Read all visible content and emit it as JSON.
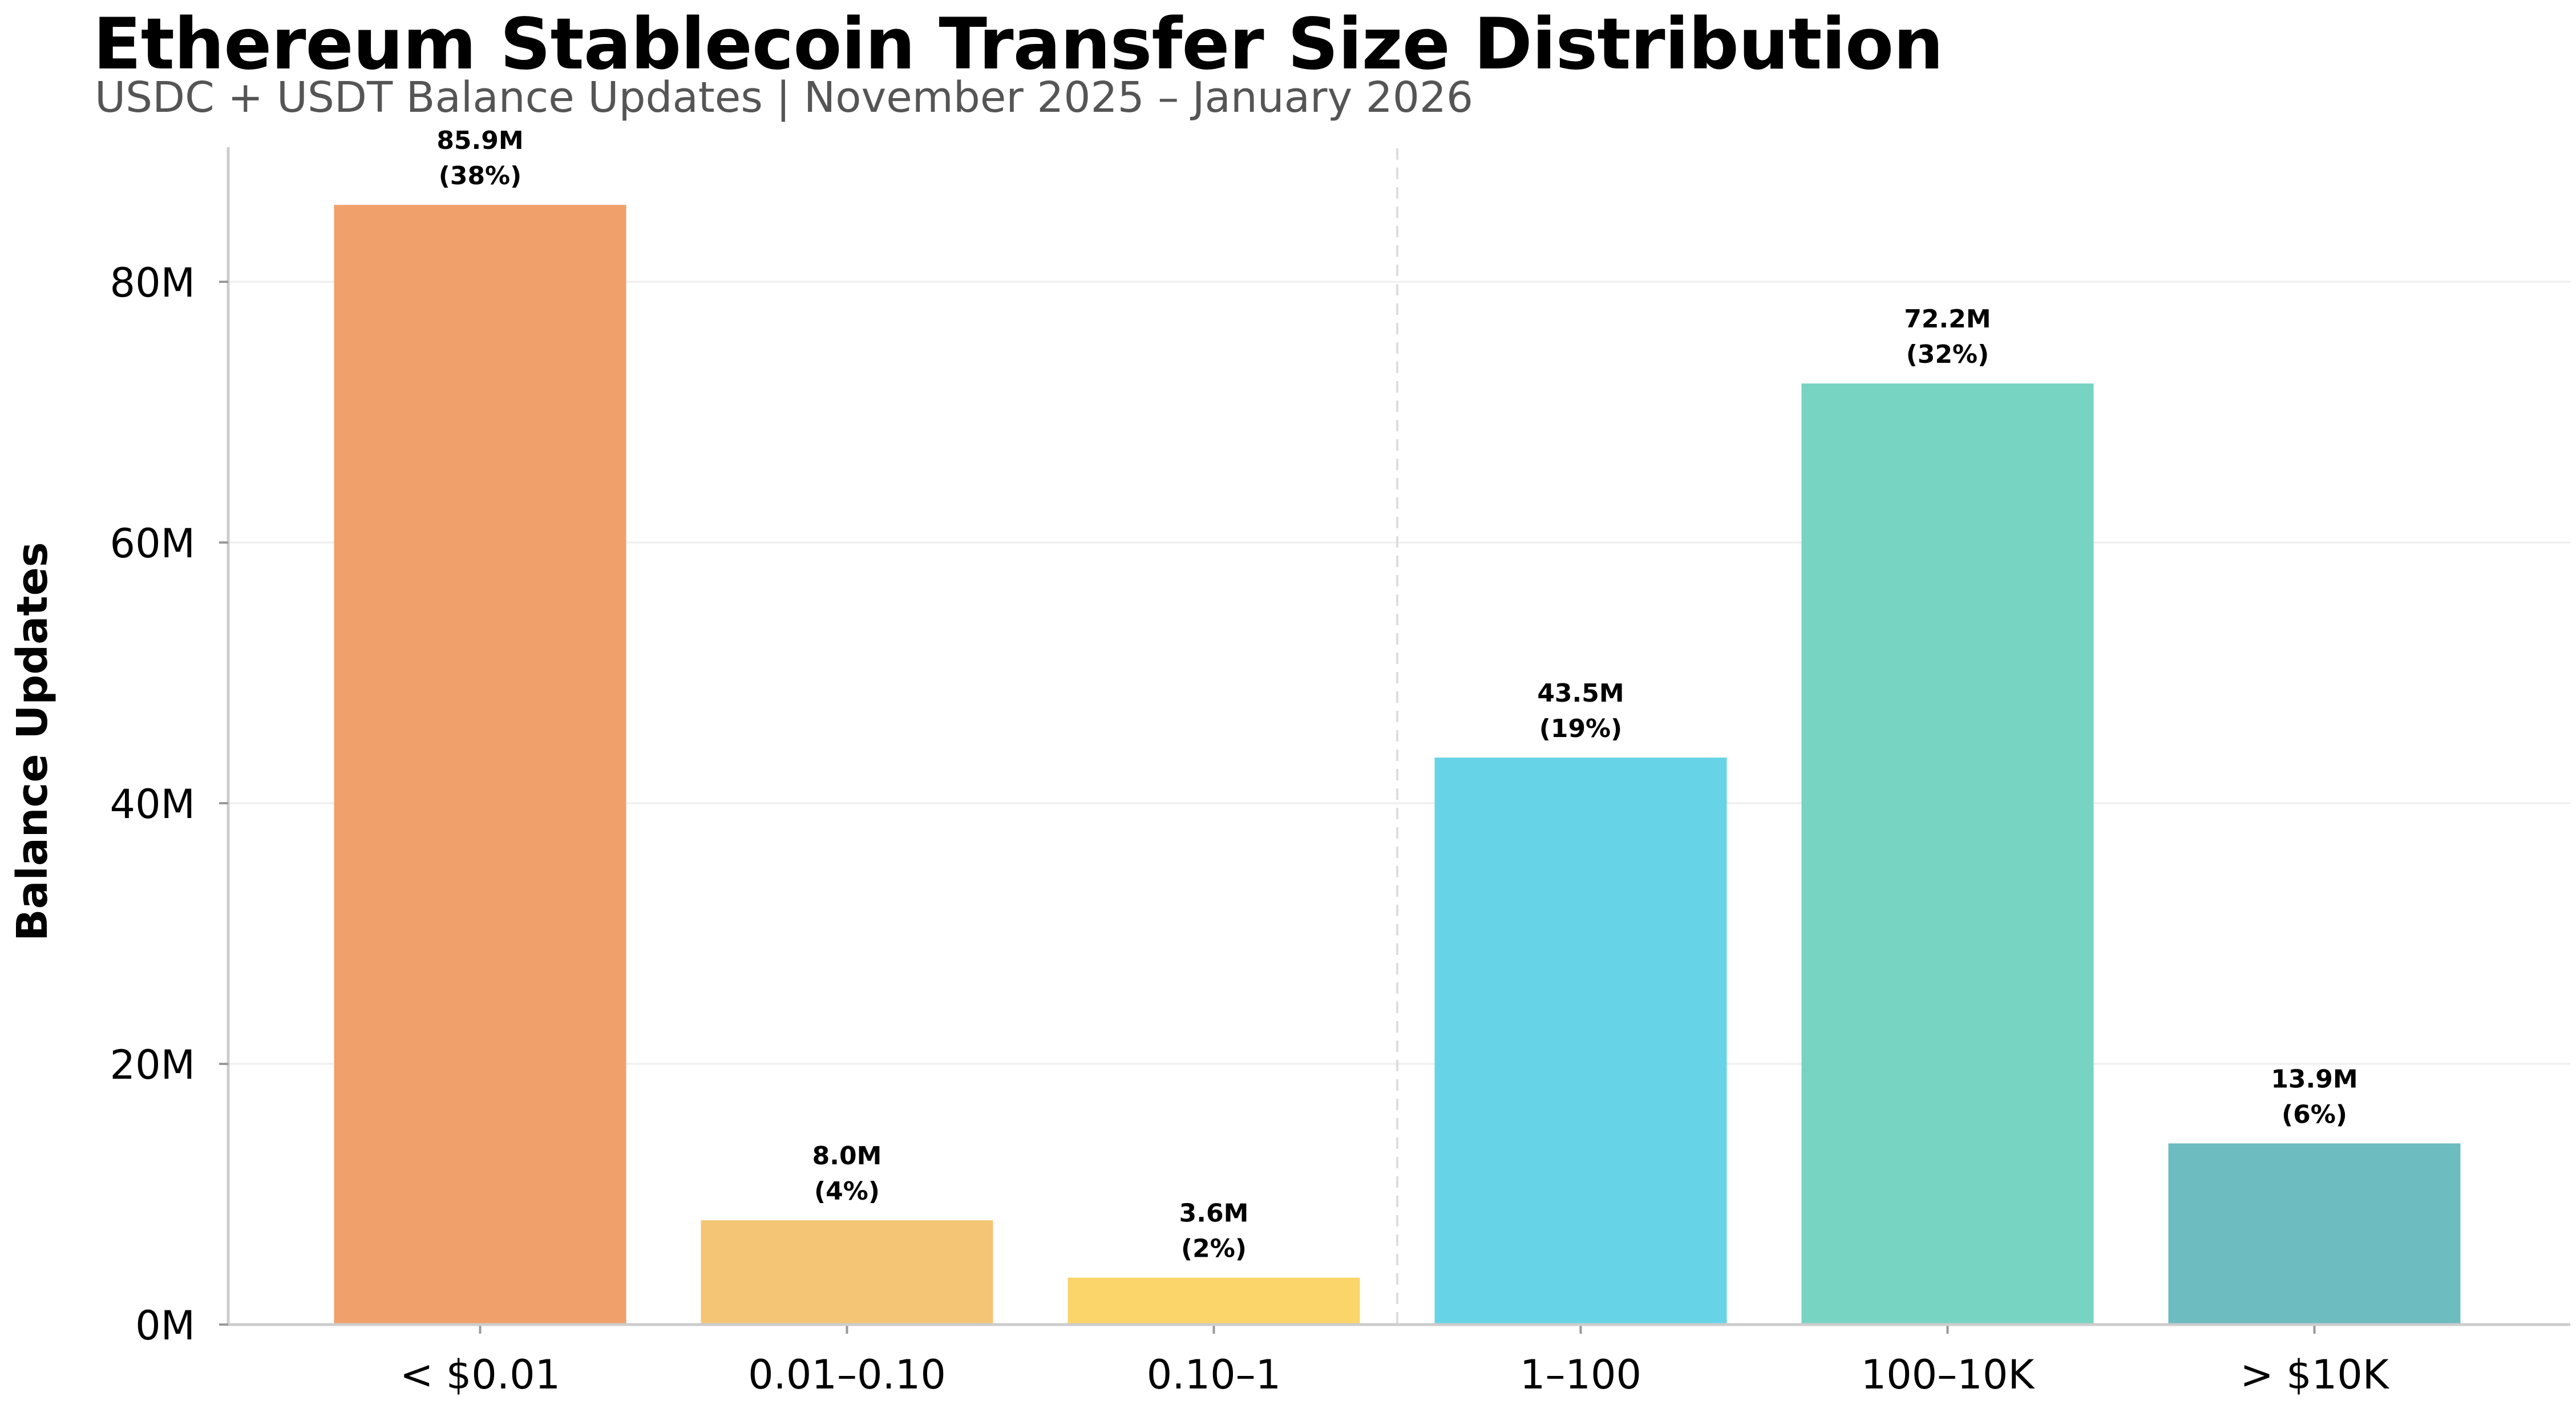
{
  "header": {
    "title": "Ethereum Stablecoin Transfer Size Distribution",
    "subtitle": "USDC + USDT Balance Updates | November 2025 – January 2026"
  },
  "chart_data": {
    "type": "bar",
    "title": "Ethereum Stablecoin Transfer Size Distribution",
    "subtitle": "USDC + USDT Balance Updates | November 2025 – January 2026",
    "xlabel": "",
    "ylabel": "Balance Updates",
    "categories": [
      "< $0.01",
      "0.01–0.10",
      "0.10–1",
      "1–100",
      "100–10K",
      "> $10K"
    ],
    "values": [
      85.9,
      8.0,
      3.6,
      43.5,
      72.2,
      13.9
    ],
    "value_unit": "M",
    "value_labels": [
      "85.9M",
      "8.0M",
      "3.6M",
      "43.5M",
      "72.2M",
      "13.9M"
    ],
    "percent_labels": [
      "(38%)",
      "(4%)",
      "(2%)",
      "(19%)",
      "(32%)",
      "(6%)"
    ],
    "colors": [
      "#F0A06B",
      "#F4C575",
      "#FBD56A",
      "#66D4E6",
      "#78D4C2",
      "#6DBCC0"
    ],
    "ylim": [
      0,
      90
    ],
    "yticks": [
      0,
      20,
      40,
      60,
      80
    ],
    "ytick_labels": [
      "0M",
      "20M",
      "40M",
      "60M",
      "80M"
    ],
    "grid": true,
    "divider_after_category": 2
  }
}
